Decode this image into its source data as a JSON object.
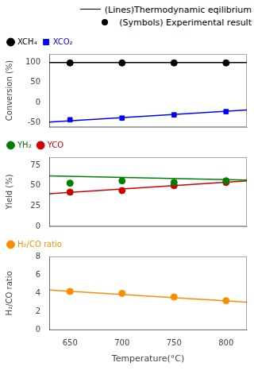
{
  "chart_data": [
    {
      "type": "scatter",
      "ylabel": "Conversion (%)",
      "xlim": [
        630,
        820
      ],
      "xticks": [
        650,
        700,
        750,
        800
      ],
      "ylim": [
        -60,
        120
      ],
      "yticks": [
        -50,
        0,
        50,
        100
      ],
      "grid": false,
      "legend": "top",
      "tick_labels": "y",
      "annotations": [
        {
          "text": "(Lines)Thermodynamic eqilibrium",
          "line_style": "solid"
        },
        {
          "text": "(Symbols) Experimental result",
          "marker": "circle"
        }
      ],
      "series": [
        {
          "type": "line",
          "color": "#000000",
          "x": [
            630,
            820
          ],
          "values": [
            99,
            99
          ]
        },
        {
          "type": "line",
          "color": "#0000ff",
          "x": [
            630,
            820
          ],
          "values": [
            -48,
            -18
          ]
        },
        {
          "name": "XCH₄",
          "type": "scatter",
          "marker": "circle",
          "color": "#000000",
          "x": [
            650,
            700,
            750,
            800
          ],
          "values": [
            98,
            98,
            98,
            98
          ]
        },
        {
          "name": "XCO₂",
          "type": "scatter",
          "marker": "square",
          "color": "#0000ff",
          "x": [
            650,
            700,
            750,
            800
          ],
          "values": [
            -42,
            -38,
            -30,
            -22
          ]
        }
      ]
    },
    {
      "type": "scatter",
      "ylabel": "Yield (%)",
      "xlim": [
        630,
        820
      ],
      "xticks": [
        650,
        700,
        750,
        800
      ],
      "ylim": [
        0,
        85
      ],
      "yticks": [
        0,
        25,
        50,
        75
      ],
      "grid": false,
      "legend": "top",
      "tick_labels": "y",
      "series": [
        {
          "type": "line",
          "color": "#008000",
          "x": [
            630,
            820
          ],
          "values": [
            62,
            57
          ]
        },
        {
          "type": "line",
          "color": "#cc0000",
          "x": [
            630,
            820
          ],
          "values": [
            40,
            56
          ]
        },
        {
          "name": "YH₂",
          "type": "scatter",
          "marker": "circle",
          "color": "#008000",
          "x": [
            650,
            700,
            750,
            800
          ],
          "values": [
            53,
            56,
            54,
            56
          ]
        },
        {
          "name": "YCO",
          "type": "scatter",
          "marker": "circle",
          "color": "#cc0000",
          "x": [
            650,
            700,
            750,
            800
          ],
          "values": [
            42,
            44,
            50,
            54
          ]
        }
      ]
    },
    {
      "type": "scatter",
      "ylabel": "H₂/CO ratio",
      "xlabel": "Temperature(°C)",
      "xlim": [
        630,
        820
      ],
      "xticks": [
        650,
        700,
        750,
        800
      ],
      "ylim": [
        0,
        8
      ],
      "yticks": [
        0,
        2,
        4,
        6,
        8
      ],
      "grid": false,
      "legend": "top",
      "series": [
        {
          "type": "line",
          "color": "#ff8c00",
          "x": [
            630,
            820
          ],
          "values": [
            4.35,
            3.05
          ]
        },
        {
          "name": "H₂/CO ratio",
          "type": "scatter",
          "marker": "circle",
          "color": "#ff8c00",
          "x": [
            650,
            700,
            750,
            800
          ],
          "values": [
            4.2,
            4.0,
            3.6,
            3.2
          ]
        }
      ]
    }
  ]
}
